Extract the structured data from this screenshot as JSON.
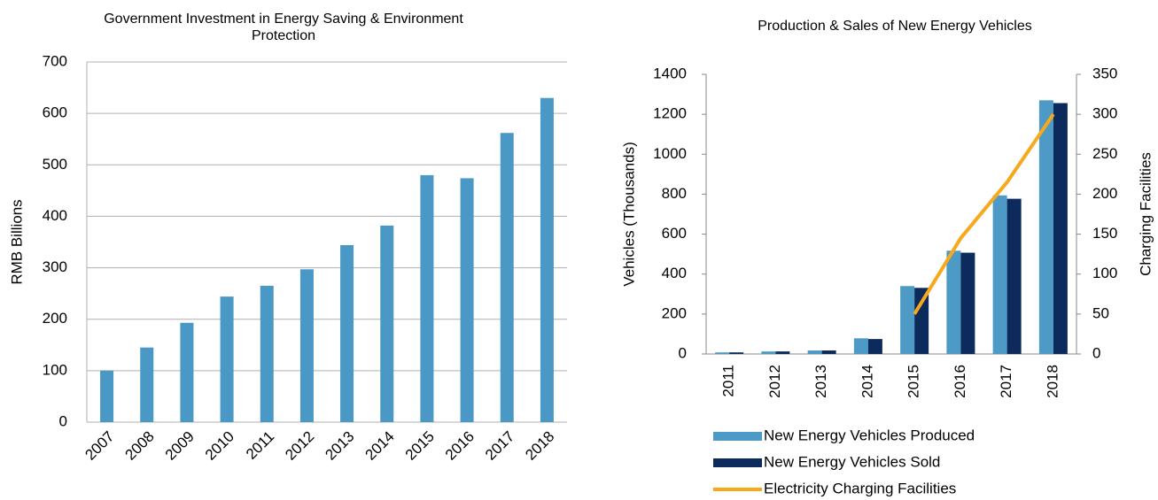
{
  "chart_data": [
    {
      "type": "bar",
      "title": "Government Investment in Energy Saving & Environment Protection",
      "ylabel": "RMB Billions",
      "categories": [
        "2007",
        "2008",
        "2009",
        "2010",
        "2011",
        "2012",
        "2013",
        "2014",
        "2015",
        "2016",
        "2017",
        "2018"
      ],
      "values": [
        100,
        145,
        193,
        244,
        265,
        297,
        344,
        382,
        480,
        474,
        562,
        630
      ],
      "color": "#4a98c5",
      "ylim": [
        0,
        700
      ],
      "yticks": [
        0,
        100,
        200,
        300,
        400,
        500,
        600,
        700
      ],
      "grid": true
    },
    {
      "type": "bar_line",
      "title": "Production & Sales of New Energy Vehicles",
      "ylabel": "Vehicles (Thousands)",
      "y2label": "Charging Facilities",
      "categories": [
        "2011",
        "2012",
        "2013",
        "2014",
        "2015",
        "2016",
        "2017",
        "2018"
      ],
      "series": [
        {
          "name": "New Energy Vehicles Produced",
          "color": "#4e9ac7",
          "kind": "bar",
          "values": [
            8,
            12.5,
            17.5,
            78.5,
            340,
            517,
            794,
            1270
          ]
        },
        {
          "name": "New Energy Vehicles Sold",
          "color": "#0c2a5c",
          "kind": "bar",
          "values": [
            8,
            12.8,
            17.6,
            74.8,
            331,
            507,
            777,
            1256
          ]
        },
        {
          "name": "Electricity Charging Facilities",
          "color": "#f7a81b",
          "kind": "line",
          "axis": "y2",
          "values": [
            null,
            null,
            null,
            null,
            50,
            145,
            215,
            300
          ]
        }
      ],
      "ylim": [
        0,
        1400
      ],
      "yticks": [
        0,
        200,
        400,
        600,
        800,
        1000,
        1200,
        1400
      ],
      "y2lim": [
        0,
        350
      ],
      "y2ticks": [
        0,
        50,
        100,
        150,
        200,
        250,
        300,
        350
      ],
      "grid": false,
      "legend": "bottom"
    }
  ]
}
